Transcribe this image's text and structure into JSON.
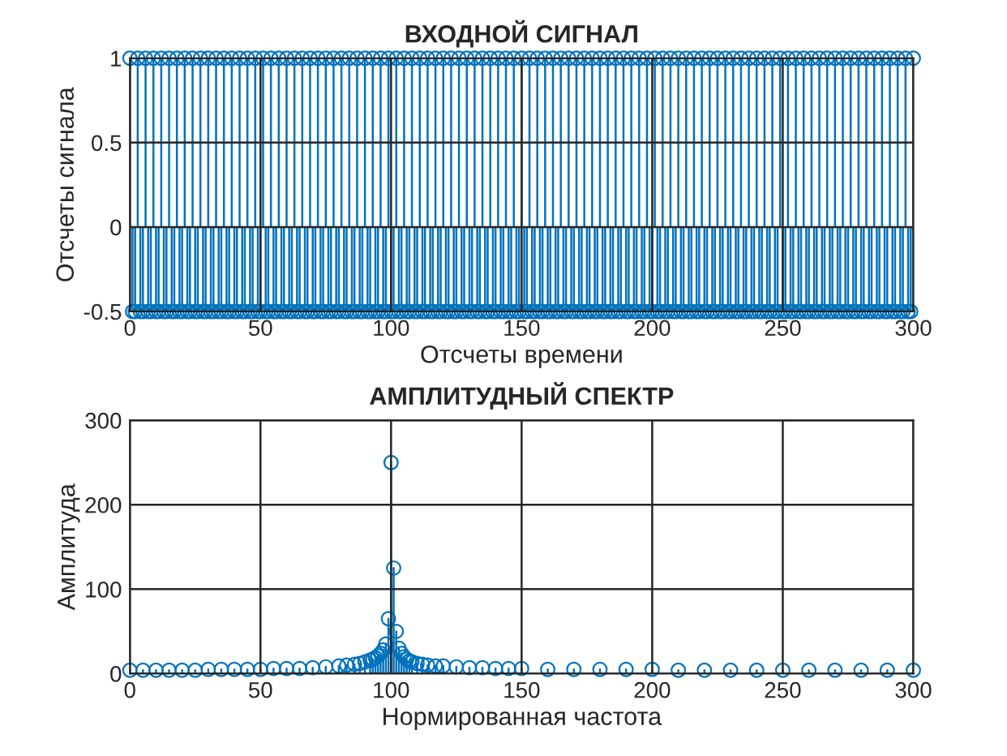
{
  "chart_data": [
    {
      "type": "lollipop",
      "title": "ВХОДНОЙ СИГНАЛ",
      "xlabel": "Отсчеты времени",
      "ylabel": "Отсчеты сигнала",
      "marker": "circle",
      "grid": true,
      "xlim": [
        0,
        300
      ],
      "xticks": [
        0,
        50,
        100,
        150,
        200,
        250,
        300
      ],
      "ylim": [
        -0.5,
        1
      ],
      "yticks": [
        -0.5,
        0,
        0.5,
        1
      ],
      "series": [
        {
          "color": "#0072bd",
          "x": [
            0,
            1,
            2,
            3,
            4,
            5,
            6,
            7,
            8,
            9,
            10,
            11,
            12,
            13,
            14,
            15,
            16,
            17,
            18,
            19,
            20,
            21,
            22,
            23,
            24,
            25,
            26,
            27,
            28,
            29,
            30,
            31,
            32,
            33,
            34,
            35,
            36,
            37,
            38,
            39,
            40,
            41,
            42,
            43,
            44,
            45,
            46,
            47,
            48,
            49,
            50,
            51,
            52,
            53,
            54,
            55,
            56,
            57,
            58,
            59,
            60,
            61,
            62,
            63,
            64,
            65,
            66,
            67,
            68,
            69,
            70,
            71,
            72,
            73,
            74,
            75,
            76,
            77,
            78,
            79,
            80,
            81,
            82,
            83,
            84,
            85,
            86,
            87,
            88,
            89,
            90,
            91,
            92,
            93,
            94,
            95,
            96,
            97,
            98,
            99,
            100,
            101,
            102,
            103,
            104,
            105,
            106,
            107,
            108,
            109,
            110,
            111,
            112,
            113,
            114,
            115,
            116,
            117,
            118,
            119,
            120,
            121,
            122,
            123,
            124,
            125,
            126,
            127,
            128,
            129,
            130,
            131,
            132,
            133,
            134,
            135,
            136,
            137,
            138,
            139,
            140,
            141,
            142,
            143,
            144,
            145,
            146,
            147,
            148,
            149,
            150,
            151,
            152,
            153,
            154,
            155,
            156,
            157,
            158,
            159,
            160,
            161,
            162,
            163,
            164,
            165,
            166,
            167,
            168,
            169,
            170,
            171,
            172,
            173,
            174,
            175,
            176,
            177,
            178,
            179,
            180,
            181,
            182,
            183,
            184,
            185,
            186,
            187,
            188,
            189,
            190,
            191,
            192,
            193,
            194,
            195,
            196,
            197,
            198,
            199,
            200,
            201,
            202,
            203,
            204,
            205,
            206,
            207,
            208,
            209,
            210,
            211,
            212,
            213,
            214,
            215,
            216,
            217,
            218,
            219,
            220,
            221,
            222,
            223,
            224,
            225,
            226,
            227,
            228,
            229,
            230,
            231,
            232,
            233,
            234,
            235,
            236,
            237,
            238,
            239,
            240,
            241,
            242,
            243,
            244,
            245,
            246,
            247,
            248,
            249,
            250,
            251,
            252,
            253,
            254,
            255,
            256,
            257,
            258,
            259,
            260,
            261,
            262,
            263,
            264,
            265,
            266,
            267,
            268,
            269,
            270,
            271,
            272,
            273,
            274,
            275,
            276,
            277,
            278,
            279,
            280,
            281,
            282,
            283,
            284,
            285,
            286,
            287,
            288,
            289,
            290,
            291,
            292,
            293,
            294,
            295,
            296,
            297,
            298,
            299,
            300
          ],
          "values": [
            1,
            -0.5,
            -0.5,
            1,
            -0.5,
            -0.5,
            1,
            -0.5,
            -0.5,
            1,
            -0.5,
            -0.5,
            1,
            -0.5,
            -0.5,
            1,
            -0.5,
            -0.5,
            1,
            -0.5,
            -0.5,
            1,
            -0.5,
            -0.5,
            1,
            -0.5,
            -0.5,
            1,
            -0.5,
            -0.5,
            1,
            -0.5,
            -0.5,
            1,
            -0.5,
            -0.5,
            1,
            -0.5,
            -0.5,
            1,
            -0.5,
            -0.5,
            1,
            -0.5,
            -0.5,
            1,
            -0.5,
            -0.5,
            1,
            -0.5,
            -0.5,
            1,
            -0.5,
            -0.5,
            1,
            -0.5,
            -0.5,
            1,
            -0.5,
            -0.5,
            1,
            -0.5,
            -0.5,
            1,
            -0.5,
            -0.5,
            1,
            -0.5,
            -0.5,
            1,
            -0.5,
            -0.5,
            1,
            -0.5,
            -0.5,
            1,
            -0.5,
            -0.5,
            1,
            -0.5,
            -0.5,
            1,
            -0.5,
            -0.5,
            1,
            -0.5,
            -0.5,
            1,
            -0.5,
            -0.5,
            1,
            -0.5,
            -0.5,
            1,
            -0.5,
            -0.5,
            1,
            -0.5,
            -0.5,
            1,
            -0.5,
            -0.5,
            1,
            -0.5,
            -0.5,
            1,
            -0.5,
            -0.5,
            1,
            -0.5,
            -0.5,
            1,
            -0.5,
            -0.5,
            1,
            -0.5,
            -0.5,
            1,
            -0.5,
            -0.5,
            1,
            -0.5,
            -0.5,
            1,
            -0.5,
            -0.5,
            1,
            -0.5,
            -0.5,
            1,
            -0.5,
            -0.5,
            1,
            -0.5,
            -0.5,
            1,
            -0.5,
            -0.5,
            1,
            -0.5,
            -0.5,
            1,
            -0.5,
            -0.5,
            1,
            -0.5,
            -0.5,
            1,
            -0.5,
            -0.5,
            1,
            -0.5,
            -0.5,
            1,
            -0.5,
            -0.5,
            1,
            -0.5,
            -0.5,
            1,
            -0.5,
            -0.5,
            1,
            -0.5,
            -0.5,
            1,
            -0.5,
            -0.5,
            1,
            -0.5,
            -0.5,
            1,
            -0.5,
            -0.5,
            1,
            -0.5,
            -0.5,
            1,
            -0.5,
            -0.5,
            1,
            -0.5,
            -0.5,
            1,
            -0.5,
            -0.5,
            1,
            -0.5,
            -0.5,
            1,
            -0.5,
            -0.5,
            1,
            -0.5,
            -0.5,
            1,
            -0.5,
            -0.5,
            1,
            -0.5,
            -0.5,
            1,
            -0.5,
            -0.5,
            1,
            -0.5,
            -0.5,
            1,
            -0.5,
            -0.5,
            1,
            -0.5,
            -0.5,
            1,
            -0.5,
            -0.5,
            1,
            -0.5,
            -0.5,
            1,
            -0.5,
            -0.5,
            1,
            -0.5,
            -0.5,
            1,
            -0.5,
            -0.5,
            1,
            -0.5,
            -0.5,
            1,
            -0.5,
            -0.5,
            1,
            -0.5,
            -0.5,
            1,
            -0.5,
            -0.5,
            1,
            -0.5,
            -0.5,
            1,
            -0.5,
            -0.5,
            1,
            -0.5,
            -0.5,
            1,
            -0.5,
            -0.5,
            1,
            -0.5,
            -0.5,
            1,
            -0.5,
            -0.5,
            1,
            -0.5,
            -0.5,
            1,
            -0.5,
            -0.5,
            1,
            -0.5,
            -0.5,
            1,
            -0.5,
            -0.5,
            1,
            -0.5,
            -0.5,
            1,
            -0.5,
            -0.5,
            1,
            -0.5,
            -0.5,
            1,
            -0.5,
            -0.5,
            1,
            -0.5,
            -0.5,
            1,
            -0.5,
            -0.5,
            1,
            -0.5,
            -0.5,
            1,
            -0.5,
            -0.5,
            1,
            -0.5,
            -0.5,
            1,
            -0.5,
            -0.5,
            1
          ]
        }
      ]
    },
    {
      "type": "lollipop",
      "title": "АМПЛИТУДНЫЙ СПЕКТР",
      "xlabel": "Нормированная частота",
      "ylabel": "Амплитуда",
      "marker": "circle",
      "grid": true,
      "xlim": [
        0,
        300
      ],
      "xticks": [
        0,
        50,
        100,
        150,
        200,
        250,
        300
      ],
      "ylim": [
        0,
        300
      ],
      "yticks": [
        0,
        100,
        200,
        300
      ],
      "series": [
        {
          "color": "#0072bd",
          "x": [
            0,
            5,
            10,
            15,
            20,
            25,
            30,
            35,
            40,
            45,
            50,
            55,
            60,
            65,
            70,
            75,
            80,
            83,
            86,
            88,
            90,
            92,
            93,
            94,
            95,
            96,
            97,
            98,
            99,
            100,
            101,
            102,
            103,
            104,
            105,
            106,
            107,
            108,
            110,
            112,
            114,
            117,
            120,
            125,
            130,
            135,
            140,
            145,
            150,
            160,
            170,
            180,
            190,
            200,
            210,
            220,
            230,
            240,
            250,
            260,
            270,
            280,
            290,
            300
          ],
          "values": [
            4,
            4,
            4,
            4,
            4,
            4,
            5,
            5,
            5,
            5,
            5,
            6,
            6,
            6,
            7,
            8,
            9,
            10,
            11,
            12,
            14,
            16,
            17,
            19,
            21,
            24,
            28,
            35,
            65,
            250,
            125,
            50,
            30,
            24,
            20,
            17,
            15,
            14,
            12,
            11,
            10,
            9,
            9,
            8,
            7,
            7,
            6,
            6,
            6,
            5,
            5,
            5,
            5,
            5,
            4,
            4,
            4,
            4,
            4,
            4,
            4,
            4,
            4,
            4
          ]
        }
      ]
    }
  ]
}
